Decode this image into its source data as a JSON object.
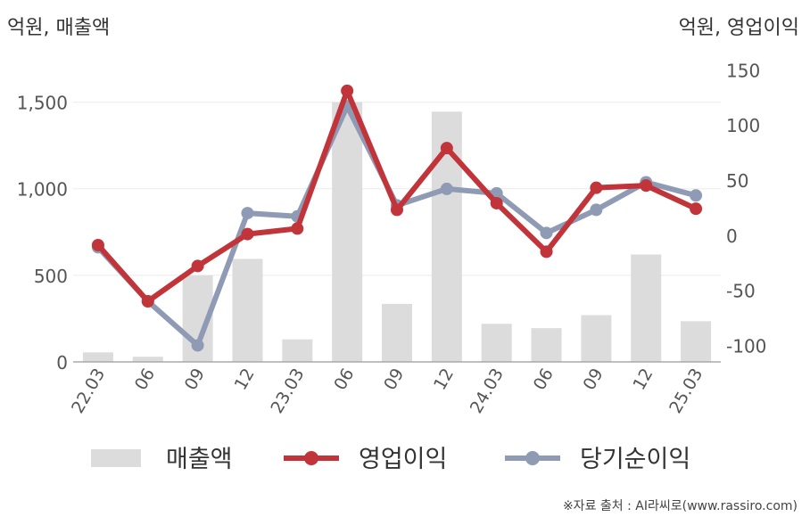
{
  "chart_data": {
    "type": "bar+line",
    "categories": [
      "22.03",
      "06",
      "09",
      "12",
      "23.03",
      "06",
      "09",
      "12",
      "24.03",
      "06",
      "09",
      "12",
      "25.03"
    ],
    "left_axis": {
      "unit_label": "억원, 매출액",
      "ylim": [
        0,
        1750
      ],
      "ticks": [
        0,
        500,
        1000,
        1500
      ],
      "tick_labels": [
        "0",
        "500",
        "1,000",
        "1,500"
      ]
    },
    "right_axis": {
      "unit_label": "억원, 영업이익",
      "ylim": [
        -115,
        160
      ],
      "ticks": [
        -100,
        -50,
        0,
        50,
        100,
        150
      ],
      "tick_labels": [
        "-100",
        "-50",
        "0",
        "50",
        "100",
        "150"
      ]
    },
    "series": [
      {
        "name": "매출액",
        "kind": "bar",
        "axis": "left",
        "color": "#dcdcdc",
        "values": [
          55,
          30,
          500,
          595,
          130,
          1500,
          335,
          1445,
          220,
          195,
          270,
          620,
          235
        ]
      },
      {
        "name": "영업이익",
        "kind": "line",
        "axis": "right",
        "color": "#c0343a",
        "values": [
          -9,
          -60,
          -28,
          1,
          6,
          131,
          23,
          79,
          29,
          -15,
          43,
          45,
          24
        ]
      },
      {
        "name": "당기순이익",
        "kind": "line",
        "axis": "right",
        "color": "#8f9bb5",
        "values": [
          -11,
          -60,
          -100,
          20,
          17,
          117,
          27,
          42,
          38,
          2,
          23,
          48,
          36
        ]
      }
    ],
    "grid": true,
    "legend_placement": "bottom"
  },
  "source_note": "※자료 출처 : AI라씨로(www.rassiro.com)"
}
